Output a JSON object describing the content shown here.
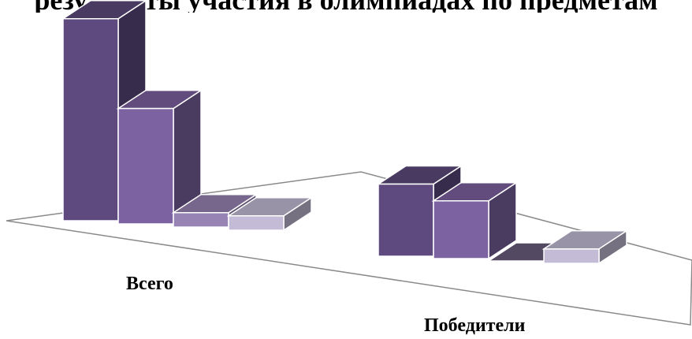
{
  "chart_data": {
    "type": "bar",
    "title": "",
    "categories": [
      "Всего",
      "Победители"
    ],
    "series": [
      {
        "values": [
          14,
          5
        ]
      },
      {
        "values": [
          8,
          4
        ]
      },
      {
        "values": [
          1,
          0
        ]
      },
      {
        "values": [
          1,
          1
        ]
      }
    ],
    "colors": {
      "series": [
        "#5e4a7e",
        "#7c62a0",
        "#9884b4",
        "#c4bcd6"
      ],
      "floor_stroke": "#8a8a8a"
    },
    "grid": false,
    "legend": "none",
    "style": "3d-column"
  },
  "page": {
    "title_fragment": "результаты  участия  в  олимпиадах  по  предметам"
  }
}
